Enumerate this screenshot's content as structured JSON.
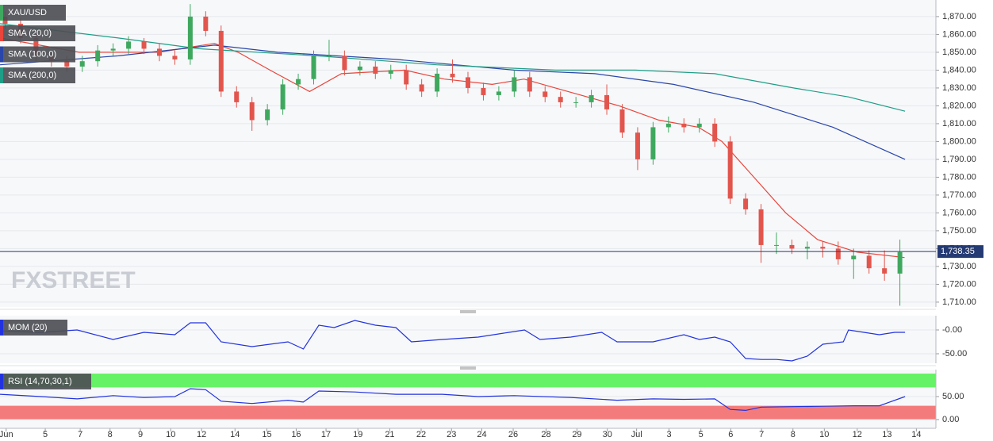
{
  "chart_data": [
    {
      "type": "candlestick",
      "title": "XAU/USD",
      "watermark": "FXSTREET",
      "up_color": "#3fa85f",
      "down_color": "#e2554d",
      "x": [
        1,
        4,
        7,
        10,
        13,
        16,
        19,
        22,
        25,
        28,
        31,
        34,
        37,
        40,
        43,
        46,
        49,
        52,
        55,
        58,
        61,
        64,
        67,
        70,
        73,
        76,
        79,
        82,
        85,
        88,
        91,
        94,
        97,
        100,
        103,
        106,
        109,
        112,
        115,
        118,
        121,
        124,
        127,
        130,
        133,
        136,
        139,
        142,
        145,
        148,
        151,
        154,
        157,
        160,
        163,
        166,
        169,
        172,
        175
      ],
      "open": [
        1870,
        1866,
        1858,
        1848,
        1845,
        1842,
        1845,
        1851,
        1852,
        1856,
        1852,
        1848,
        1846,
        1870,
        1862,
        1828,
        1822,
        1812,
        1818,
        1832,
        1835,
        1848,
        1848,
        1840,
        1842,
        1838,
        1840,
        1832,
        1828,
        1838,
        1836,
        1830,
        1826,
        1828,
        1836,
        1828,
        1825,
        1822,
        1822,
        1826,
        1818,
        1805,
        1790,
        1808,
        1810,
        1808,
        1810,
        1800,
        1768,
        1762,
        1742,
        1742,
        1740,
        1741,
        1740,
        1734,
        1736,
        1729,
        1726
      ],
      "high": [
        1873,
        1869,
        1861,
        1851,
        1848,
        1848,
        1854,
        1855,
        1859,
        1858,
        1855,
        1851,
        1877,
        1873,
        1865,
        1831,
        1825,
        1821,
        1835,
        1838,
        1851,
        1857,
        1851,
        1845,
        1845,
        1843,
        1843,
        1835,
        1841,
        1846,
        1839,
        1833,
        1831,
        1840,
        1839,
        1831,
        1828,
        1825,
        1829,
        1832,
        1821,
        1808,
        1811,
        1814,
        1813,
        1813,
        1813,
        1803,
        1771,
        1765,
        1749,
        1745,
        1744,
        1744,
        1744,
        1740,
        1739,
        1739,
        1745
      ],
      "low": [
        1863,
        1855,
        1845,
        1842,
        1839,
        1839,
        1842,
        1848,
        1849,
        1849,
        1845,
        1843,
        1843,
        1859,
        1825,
        1819,
        1806,
        1809,
        1815,
        1829,
        1832,
        1845,
        1837,
        1837,
        1835,
        1835,
        1829,
        1825,
        1825,
        1833,
        1827,
        1823,
        1823,
        1825,
        1825,
        1822,
        1819,
        1819,
        1819,
        1815,
        1802,
        1784,
        1787,
        1805,
        1805,
        1805,
        1797,
        1765,
        1759,
        1732,
        1737,
        1737,
        1734,
        1735,
        1731,
        1723,
        1726,
        1722,
        1708
      ],
      "close": [
        1866,
        1858,
        1848,
        1845,
        1842,
        1845,
        1851,
        1852,
        1856,
        1852,
        1848,
        1846,
        1870,
        1862,
        1828,
        1822,
        1812,
        1818,
        1832,
        1835,
        1848,
        1848,
        1840,
        1842,
        1838,
        1840,
        1832,
        1828,
        1838,
        1836,
        1830,
        1826,
        1828,
        1836,
        1828,
        1825,
        1822,
        1822,
        1826,
        1818,
        1805,
        1790,
        1808,
        1810,
        1808,
        1810,
        1800,
        1768,
        1762,
        1742,
        1742,
        1740,
        1741,
        1740,
        1734,
        1736,
        1729,
        1726,
        1738
      ],
      "series": [
        {
          "name": "SMA (20,0)",
          "color": "#e8453c",
          "x": [
            0,
            15.4,
            30.9,
            41.7,
            46.3,
            52.5,
            60.2,
            66.4,
            78.7,
            86.4,
            95.7,
            101.9,
            108,
            114.2,
            120.4,
            128.1,
            135.8,
            140.4,
            146.6,
            152.8,
            159,
            166.7,
            175.9
          ],
          "values": [
            1858,
            1850,
            1850,
            1855,
            1850,
            1840,
            1828,
            1838,
            1840,
            1835,
            1832,
            1835,
            1830,
            1825,
            1820,
            1812,
            1808,
            1800,
            1780,
            1760,
            1745,
            1738,
            1735
          ]
        },
        {
          "name": "SMA (100,0)",
          "color": "#2a46a8",
          "x": [
            0,
            23,
            41.7,
            54,
            77,
            100,
            115.7,
            131,
            146.6,
            162,
            176
          ],
          "values": [
            1843,
            1848,
            1854,
            1850,
            1846,
            1840,
            1838,
            1832,
            1822,
            1808,
            1790
          ]
        },
        {
          "name": "SMA (200,0)",
          "color": "#1e9e86",
          "x": [
            0,
            23,
            38.6,
            61.7,
            84.9,
            108,
            123.5,
            139,
            154.3,
            165,
            176
          ],
          "values": [
            1866,
            1858,
            1852,
            1848,
            1843,
            1840,
            1840,
            1838,
            1830,
            1825,
            1817
          ]
        }
      ],
      "last": {
        "value": 1738.35,
        "label": "1,738.35"
      },
      "last_color": "#243a73",
      "xlim": [
        0,
        182
      ],
      "ylim": [
        1707.3,
        1879.3
      ],
      "grid": true,
      "yticks": [
        {
          "value": 1710,
          "label": "1,710.00"
        },
        {
          "value": 1720,
          "label": "1,720.00"
        },
        {
          "value": 1730,
          "label": "1,730.00"
        },
        {
          "value": 1740,
          "label": "1,740.00"
        },
        {
          "value": 1750,
          "label": "1,750.00"
        },
        {
          "value": 1760,
          "label": "1,760.00"
        },
        {
          "value": 1770,
          "label": "1,770.00"
        },
        {
          "value": 1780,
          "label": "1,780.00"
        },
        {
          "value": 1790,
          "label": "1,790.00"
        },
        {
          "value": 1800,
          "label": "1,800.00"
        },
        {
          "value": 1810,
          "label": "1,810.00"
        },
        {
          "value": 1820,
          "label": "1,820.00"
        },
        {
          "value": 1830,
          "label": "1,830.00"
        },
        {
          "value": 1840,
          "label": "1,840.00"
        },
        {
          "value": 1850,
          "label": "1,850.00"
        },
        {
          "value": 1860,
          "label": "1,860.00"
        },
        {
          "value": 1870,
          "label": "1,870.00"
        }
      ],
      "xticks": [
        {
          "value": 1.2,
          "label": "Jun"
        },
        {
          "value": 8.8,
          "label": "5"
        },
        {
          "value": 15.6,
          "label": "7"
        },
        {
          "value": 21.4,
          "label": "8"
        },
        {
          "value": 27.3,
          "label": "9"
        },
        {
          "value": 33.2,
          "label": "10"
        },
        {
          "value": 39.2,
          "label": "12"
        },
        {
          "value": 45.7,
          "label": "14"
        },
        {
          "value": 51.9,
          "label": "15"
        },
        {
          "value": 57.6,
          "label": "16"
        },
        {
          "value": 63.4,
          "label": "17"
        },
        {
          "value": 69.6,
          "label": "19"
        },
        {
          "value": 75.8,
          "label": "21"
        },
        {
          "value": 81.9,
          "label": "22"
        },
        {
          "value": 87.8,
          "label": "23"
        },
        {
          "value": 93.7,
          "label": "24"
        },
        {
          "value": 99.8,
          "label": "26"
        },
        {
          "value": 106.2,
          "label": "28"
        },
        {
          "value": 112.2,
          "label": "29"
        },
        {
          "value": 118.1,
          "label": "30"
        },
        {
          "value": 123.8,
          "label": "Jul"
        },
        {
          "value": 130.1,
          "label": "3"
        },
        {
          "value": 136.3,
          "label": "5"
        },
        {
          "value": 142.1,
          "label": "6"
        },
        {
          "value": 148.1,
          "label": "7"
        },
        {
          "value": 154.2,
          "label": "8"
        },
        {
          "value": 160.3,
          "label": "10"
        },
        {
          "value": 166.7,
          "label": "12"
        },
        {
          "value": 172.5,
          "label": "13"
        },
        {
          "value": 178.2,
          "label": "14"
        }
      ]
    },
    {
      "type": "line",
      "title": "MOM (20)",
      "color": "#2233dd",
      "x": [
        0,
        8,
        15,
        22,
        28,
        34,
        37,
        40,
        43,
        49,
        56,
        59,
        62,
        65,
        69,
        73,
        77,
        80,
        86,
        93,
        99,
        102,
        105,
        111,
        117,
        120,
        127,
        133,
        136,
        139,
        142,
        145,
        148,
        151,
        154,
        157,
        160,
        164,
        165,
        168,
        171,
        174,
        176
      ],
      "values": [
        -2,
        -5,
        0,
        -20,
        -5,
        -10,
        15,
        15,
        -25,
        -35,
        -25,
        -40,
        10,
        5,
        20,
        10,
        5,
        -25,
        -20,
        -15,
        -5,
        0,
        -20,
        -15,
        -5,
        -25,
        -25,
        -10,
        -20,
        -15,
        -25,
        -60,
        -62,
        -62,
        -65,
        -55,
        -30,
        -25,
        0,
        -5,
        -10,
        -5,
        -5
      ],
      "xlim": [
        0,
        182
      ],
      "ylim": [
        -70,
        30
      ],
      "yticks": [
        {
          "value": 0,
          "label": "-0.00"
        },
        {
          "value": -50,
          "label": "-50.00"
        }
      ]
    },
    {
      "type": "line",
      "title": "RSI (14,70,30,1)",
      "color": "#2233dd",
      "bands": [
        {
          "from": 70,
          "to": 100,
          "color": "#66f266"
        },
        {
          "from": 0,
          "to": 30,
          "color": "#f47b7b"
        }
      ],
      "x": [
        0,
        8,
        15,
        22,
        28,
        34,
        37,
        40,
        43,
        49,
        56,
        59,
        62,
        69,
        77,
        86,
        93,
        100,
        111,
        120,
        127,
        133,
        139,
        142,
        145,
        148,
        154,
        160,
        166,
        171,
        176
      ],
      "values": [
        55,
        50,
        45,
        52,
        48,
        50,
        67,
        65,
        40,
        35,
        42,
        38,
        62,
        60,
        55,
        55,
        50,
        52,
        48,
        42,
        45,
        44,
        45,
        22,
        20,
        27,
        28,
        29,
        30,
        30,
        50
      ],
      "xlim": [
        0,
        182
      ],
      "ylim": [
        -19,
        108.6
      ],
      "yticks": [
        {
          "value": 50,
          "label": "50.00"
        },
        {
          "value": 0,
          "label": "0.00"
        }
      ]
    }
  ]
}
